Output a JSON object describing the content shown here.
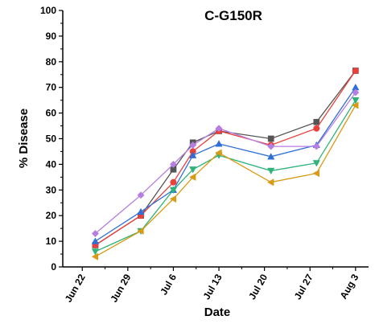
{
  "chart_data": {
    "type": "line",
    "title": "C-G150R",
    "xlabel": "Date",
    "ylabel": "% Disease",
    "ylim": [
      0,
      100
    ],
    "yticks": [
      0,
      10,
      20,
      30,
      40,
      50,
      60,
      70,
      80,
      90,
      100
    ],
    "xlim": [
      "2021-06-19",
      "2021-08-05"
    ],
    "xticks": [
      {
        "date": "2021-06-22",
        "label": "Jun 22"
      },
      {
        "date": "2021-06-29",
        "label": "Jun 29"
      },
      {
        "date": "2021-07-06",
        "label": "Jul 6"
      },
      {
        "date": "2021-07-13",
        "label": "Jul 13"
      },
      {
        "date": "2021-07-20",
        "label": "Jul 20"
      },
      {
        "date": "2021-07-27",
        "label": "Jul 27"
      },
      {
        "date": "2021-08-03",
        "label": "Aug 3"
      }
    ],
    "grid": false,
    "legend": "none",
    "x": [
      "2021-06-24",
      "2021-07-01",
      "2021-07-06",
      "2021-07-09",
      "2021-07-13",
      "2021-07-21",
      "2021-07-28",
      "2021-08-03"
    ],
    "series": [
      {
        "color": "#555555",
        "marker": "square",
        "values": [
          8.5,
          20,
          38,
          48.5,
          53,
          50,
          56.5,
          76.5
        ]
      },
      {
        "color": "#e8413c",
        "marker": "circle",
        "values": [
          8.5,
          20,
          33,
          45,
          53,
          47.5,
          54,
          76.5
        ]
      },
      {
        "color": "#2f6fd6",
        "marker": "triangle-up",
        "values": [
          10,
          21.5,
          30,
          43.5,
          48,
          43,
          47.5,
          70
        ]
      },
      {
        "color": "#2fb37a",
        "marker": "triangle-down",
        "values": [
          6,
          14,
          30,
          38,
          43.5,
          37.5,
          40.5,
          65
        ]
      },
      {
        "color": "#d99a14",
        "marker": "triangle-left",
        "values": [
          4,
          14,
          26.5,
          35,
          44.5,
          33,
          36.5,
          63
        ]
      },
      {
        "color": "#b57ee0",
        "marker": "diamond",
        "values": [
          13,
          28,
          40,
          47.5,
          54,
          47,
          47,
          68
        ]
      }
    ]
  }
}
